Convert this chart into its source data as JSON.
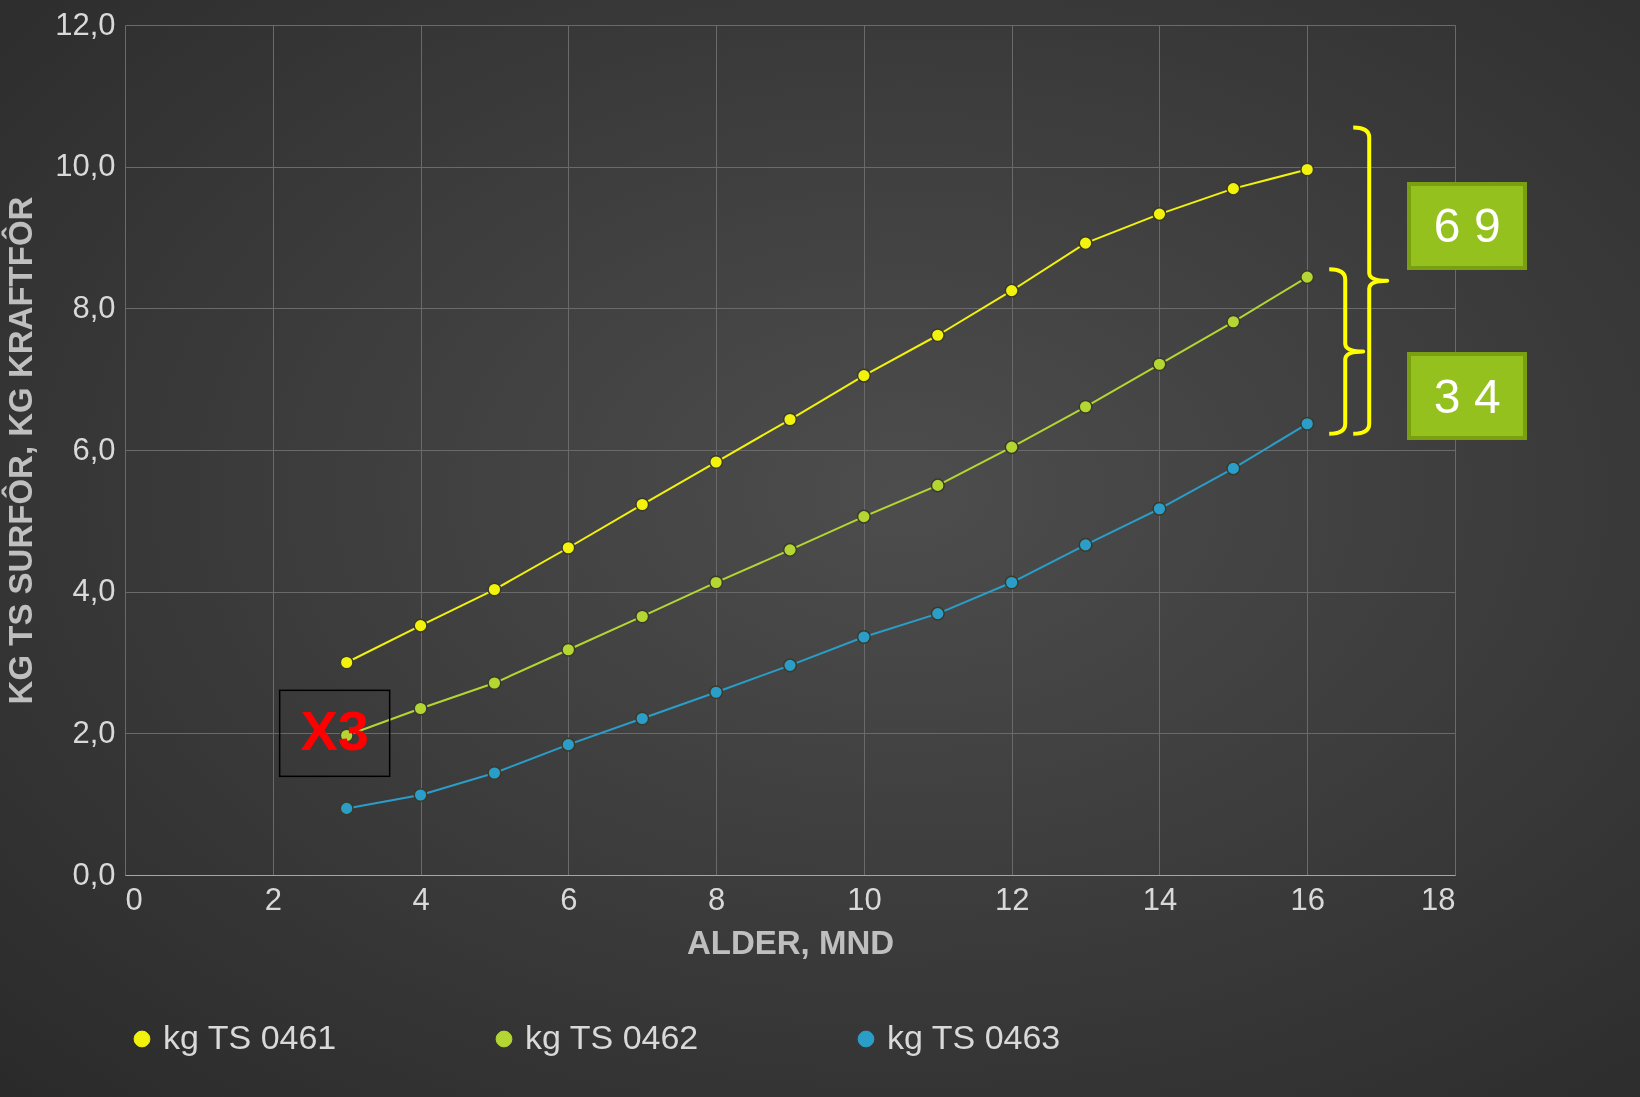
{
  "chart_data": {
    "type": "line",
    "xlabel": "ALDER, MND",
    "ylabel": "KG TS SURFÔR,  KG KRAFTFÔR",
    "x": [
      3,
      4,
      5,
      6,
      7,
      8,
      9,
      10,
      11,
      12,
      13,
      14,
      15,
      16
    ],
    "series": [
      {
        "name": "kg TS 0461",
        "color": "#f2f20d",
        "values": [
          3.0,
          3.52,
          4.03,
          4.62,
          5.23,
          5.83,
          6.43,
          7.05,
          7.62,
          8.25,
          8.92,
          9.33,
          9.69,
          9.96
        ]
      },
      {
        "name": "kg TS 0462",
        "color": "#b4d632",
        "values": [
          1.97,
          2.35,
          2.71,
          3.18,
          3.65,
          4.13,
          4.59,
          5.06,
          5.5,
          6.04,
          6.61,
          7.21,
          7.81,
          8.44
        ]
      },
      {
        "name": "kg TS 0463",
        "color": "#2a9ec8",
        "values": [
          0.94,
          1.13,
          1.44,
          1.84,
          2.21,
          2.58,
          2.96,
          3.36,
          3.69,
          4.13,
          4.66,
          5.17,
          5.74,
          6.37
        ]
      }
    ],
    "xlim": [
      0,
      18
    ],
    "xticks": [
      0,
      2,
      4,
      6,
      8,
      10,
      12,
      14,
      16,
      18
    ],
    "ylim": [
      0,
      12
    ],
    "yticks": [
      {
        "value": 0,
        "label": "0,0"
      },
      {
        "value": 2,
        "label": "2,0"
      },
      {
        "value": 4,
        "label": "4,0"
      },
      {
        "value": 6,
        "label": "6,0"
      },
      {
        "value": 8,
        "label": "8,0"
      },
      {
        "value": 10,
        "label": "10,0"
      },
      {
        "value": 12,
        "label": "12,0"
      }
    ],
    "annotations": [
      "6 9",
      "3 4",
      {
        "text": "X3",
        "x": 3,
        "y": 2.0
      }
    ],
    "grid": true,
    "legend": "bottom",
    "marker": "circle",
    "line_style": "solid"
  }
}
